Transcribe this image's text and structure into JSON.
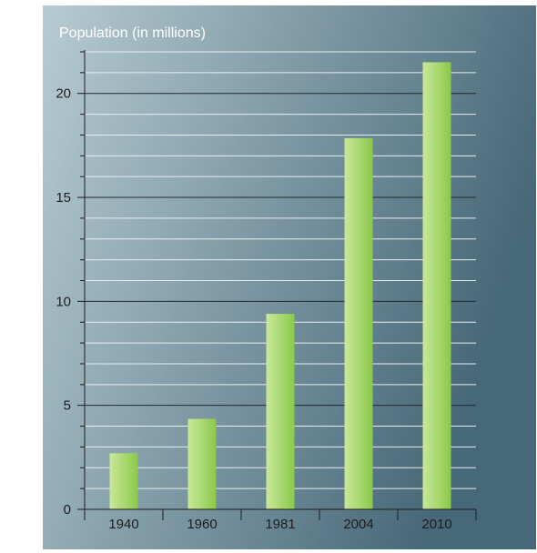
{
  "chart_data": {
    "type": "bar",
    "title": "Population (in millions)",
    "xlabel": "",
    "ylabel": "",
    "categories": [
      "1940",
      "1960",
      "1981",
      "2004",
      "2010"
    ],
    "values": [
      2.7,
      4.35,
      9.4,
      17.85,
      21.5
    ],
    "ylim": [
      0,
      22
    ],
    "yticks": [
      0,
      5,
      10,
      15,
      20
    ],
    "minor_step": 1,
    "grid": true,
    "colors": {
      "bar_light": "#c9e89a",
      "bar_dark": "#8bc94a",
      "background_left": "#b7cbd2",
      "background_right": "#476878",
      "axis": "#1c1c1c",
      "grid_major": "#1f2a30",
      "grid_minor": "#e6eef1"
    }
  }
}
